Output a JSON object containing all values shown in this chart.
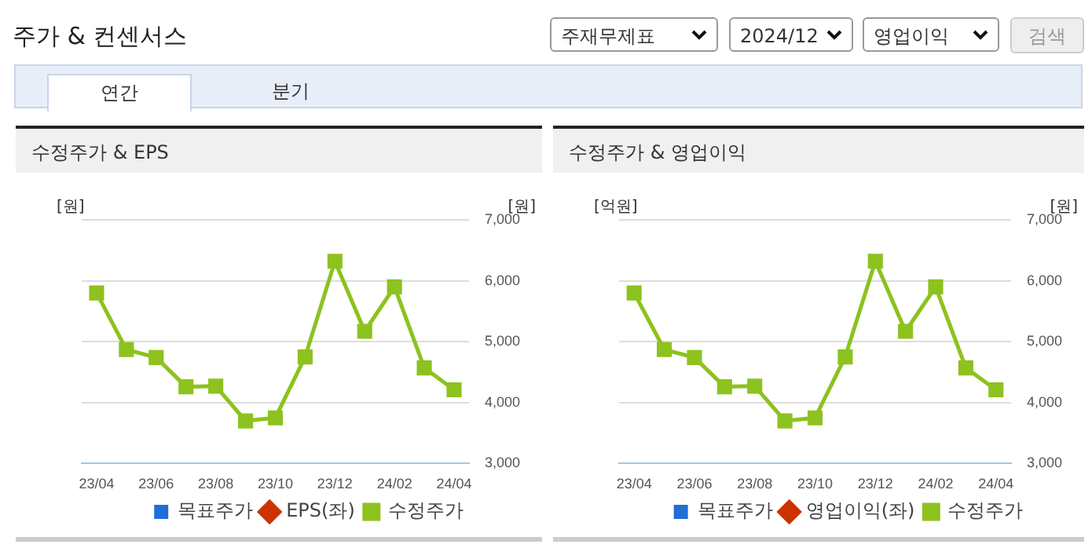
{
  "chart_data": [
    {
      "type": "line",
      "title": "수정주가 & EPS",
      "ylabel": "[원]",
      "y2label": "[원]",
      "annotations": [
        "주가 & 컨센서스",
        "주재무제표",
        "2024/12",
        "영업이익",
        "검색",
        "연간",
        "분기"
      ],
      "categories": [
        "23/04",
        null,
        "23/06",
        null,
        "23/08",
        null,
        "23/10",
        null,
        "23/12",
        null,
        "24/02",
        null,
        "24/04"
      ],
      "series": [
        {
          "name": "목표주가",
          "type": "bar",
          "color": "#1f6fd8",
          "values": [
            null,
            null,
            null,
            null,
            null,
            null,
            null,
            null,
            null,
            null,
            null,
            null,
            null
          ]
        },
        {
          "name": "EPS(좌)",
          "marker": "diamond",
          "color": "#cc3300",
          "values": [
            null,
            null,
            null,
            null,
            null,
            null,
            null,
            null,
            null,
            null,
            null,
            null,
            null
          ]
        },
        {
          "name": "수정주가",
          "marker": "square",
          "axis": "y2",
          "color": "#8dc21f",
          "values": [
            5800,
            4870,
            4740,
            4260,
            4270,
            3700,
            3750,
            4750,
            6320,
            5170,
            5900,
            4570,
            4210
          ]
        }
      ],
      "y2lim": [
        3000,
        7000
      ],
      "y2ticks": [
        {
          "value": 3000,
          "label": "3,000"
        },
        {
          "value": 4000,
          "label": "4,000"
        },
        {
          "value": 5000,
          "label": "5,000"
        },
        {
          "value": 6000,
          "label": "6,000"
        },
        {
          "value": 7000,
          "label": "7,000"
        }
      ],
      "grid": "y2",
      "legend": "bottom"
    },
    {
      "type": "line",
      "title": "수정주가 & 영업이익",
      "ylabel": "[억원]",
      "y2label": "[원]",
      "categories": [
        "23/04",
        null,
        "23/06",
        null,
        "23/08",
        null,
        "23/10",
        null,
        "23/12",
        null,
        "24/02",
        null,
        "24/04"
      ],
      "series": [
        {
          "name": "목표주가",
          "type": "bar",
          "color": "#1f6fd8",
          "values": [
            null,
            null,
            null,
            null,
            null,
            null,
            null,
            null,
            null,
            null,
            null,
            null,
            null
          ]
        },
        {
          "name": "영업이익(좌)",
          "marker": "diamond",
          "color": "#cc3300",
          "values": [
            null,
            null,
            null,
            null,
            null,
            null,
            null,
            null,
            null,
            null,
            null,
            null,
            null
          ]
        },
        {
          "name": "수정주가",
          "marker": "square",
          "axis": "y2",
          "color": "#8dc21f",
          "values": [
            5800,
            4870,
            4740,
            4260,
            4270,
            3700,
            3750,
            4750,
            6320,
            5170,
            5900,
            4570,
            4210
          ]
        }
      ],
      "y2lim": [
        3000,
        7000
      ],
      "y2ticks": [
        {
          "value": 3000,
          "label": "3,000"
        },
        {
          "value": 4000,
          "label": "4,000"
        },
        {
          "value": 5000,
          "label": "5,000"
        },
        {
          "value": 6000,
          "label": "6,000"
        },
        {
          "value": 7000,
          "label": "7,000"
        }
      ],
      "grid": "y2",
      "legend": "bottom"
    }
  ]
}
